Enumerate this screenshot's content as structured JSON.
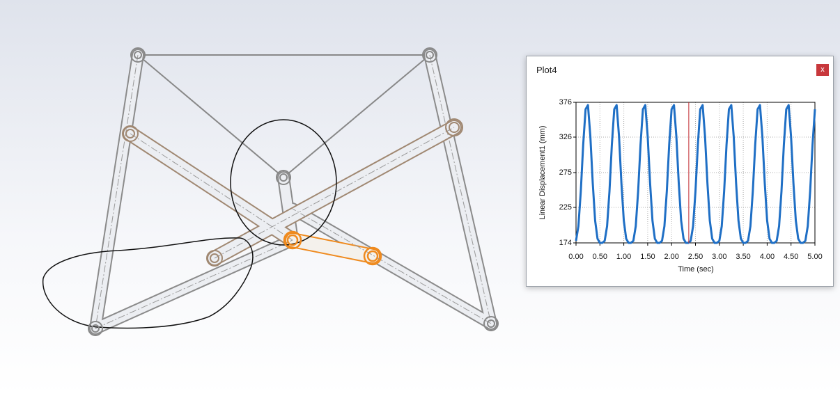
{
  "window": {
    "title": "Plot4",
    "close_label": "x"
  },
  "chart_data": {
    "type": "line",
    "xlabel": "Time (sec)",
    "ylabel": "Linear Displacement1 (mm)",
    "x": [
      0,
      0.05,
      0.1,
      0.15,
      0.2,
      0.25,
      0.3,
      0.35,
      0.4,
      0.45,
      0.5,
      0.55,
      0.6,
      0.65,
      0.7,
      0.75,
      0.8,
      0.85,
      0.9,
      0.95,
      1,
      1.05,
      1.1,
      1.15,
      1.2,
      1.25,
      1.3,
      1.35,
      1.4,
      1.45,
      1.5,
      1.55,
      1.6,
      1.65,
      1.7,
      1.75,
      1.8,
      1.85,
      1.9,
      1.95,
      2,
      2.05,
      2.1,
      2.15,
      2.2,
      2.25,
      2.3,
      2.35,
      2.4,
      2.45,
      2.5,
      2.55,
      2.6,
      2.65,
      2.7,
      2.75,
      2.8,
      2.85,
      2.9,
      2.95,
      3,
      3.05,
      3.1,
      3.15,
      3.2,
      3.25,
      3.3,
      3.35,
      3.4,
      3.45,
      3.5,
      3.55,
      3.6,
      3.65,
      3.7,
      3.75,
      3.8,
      3.85,
      3.9,
      3.95,
      4,
      4.05,
      4.1,
      4.15,
      4.2,
      4.25,
      4.3,
      4.35,
      4.4,
      4.45,
      4.5,
      4.55,
      4.6,
      4.65,
      4.7,
      4.75,
      4.8,
      4.85,
      4.9,
      4.95,
      5
    ],
    "series": [
      {
        "name": "Linear Displacement1",
        "color": "#1f6fc5",
        "values": [
          177,
          198,
          248,
          315,
          366,
          372,
          327,
          260,
          206,
          180,
          174,
          174,
          177,
          198,
          248,
          315,
          366,
          372,
          327,
          260,
          206,
          180,
          174,
          174,
          177,
          198,
          248,
          315,
          366,
          372,
          327,
          260,
          206,
          180,
          174,
          174,
          177,
          198,
          248,
          315,
          366,
          372,
          327,
          260,
          206,
          180,
          174,
          174,
          177,
          198,
          248,
          315,
          366,
          372,
          327,
          260,
          206,
          180,
          174,
          174,
          177,
          198,
          248,
          315,
          366,
          372,
          327,
          260,
          206,
          180,
          174,
          174,
          177,
          198,
          248,
          315,
          366,
          372,
          327,
          260,
          206,
          180,
          174,
          174,
          177,
          198,
          248,
          315,
          366,
          372,
          327,
          260,
          206,
          180,
          174,
          174,
          177,
          198,
          248,
          315,
          366
        ]
      }
    ],
    "cursor_x": 2.36,
    "cursor_color": "#c0282d",
    "xlim": [
      0,
      5
    ],
    "ylim": [
      174,
      376
    ],
    "xticks": [
      {
        "value": 0,
        "label": "0.00"
      },
      {
        "value": 0.5,
        "label": "0.50"
      },
      {
        "value": 1,
        "label": "1.00"
      },
      {
        "value": 1.5,
        "label": "1.50"
      },
      {
        "value": 2,
        "label": "2.00"
      },
      {
        "value": 2.5,
        "label": "2.50"
      },
      {
        "value": 3,
        "label": "3.00"
      },
      {
        "value": 3.5,
        "label": "3.50"
      },
      {
        "value": 4,
        "label": "4.00"
      },
      {
        "value": 4.5,
        "label": "4.50"
      },
      {
        "value": 5,
        "label": "5.00"
      }
    ],
    "yticks": [
      174,
      225,
      275,
      326,
      376
    ],
    "grid": true
  }
}
